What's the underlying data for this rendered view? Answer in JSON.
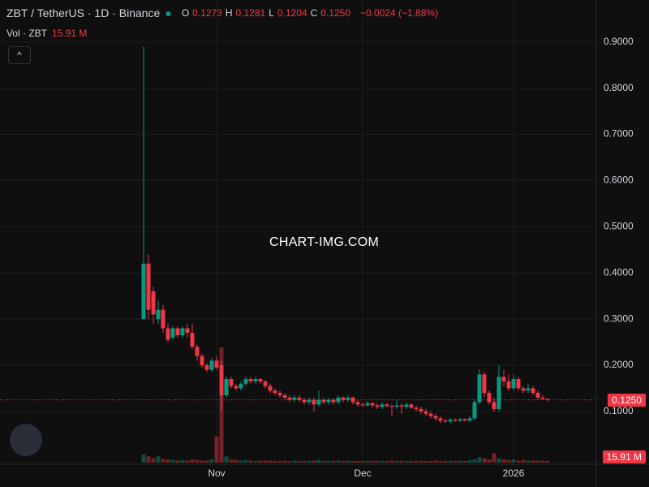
{
  "header": {
    "title": "ZBT / TetherUS · 1D · Binance",
    "ohlc": [
      {
        "key": "O",
        "value": "0.1273"
      },
      {
        "key": "H",
        "value": "0.1281"
      },
      {
        "key": "L",
        "value": "0.1204"
      },
      {
        "key": "C",
        "value": "0.1250"
      }
    ],
    "change": "−0.0024 (−1.88%)",
    "volume_label": "Vol · ZBT",
    "volume_value": "15.91 M"
  },
  "watermark": "CHART-IMG.COM",
  "chart_data": {
    "type": "candlestick",
    "categories": [
      null,
      null,
      null,
      null,
      null,
      null,
      null,
      null,
      null,
      null,
      null,
      null,
      null,
      null,
      null,
      "Nov",
      null,
      null,
      null,
      null,
      null,
      null,
      null,
      null,
      null,
      null,
      null,
      null,
      null,
      null,
      null,
      null,
      null,
      null,
      null,
      null,
      null,
      null,
      null,
      null,
      null,
      null,
      null,
      null,
      null,
      "Dec",
      null,
      null,
      null,
      null,
      null,
      null,
      null,
      null,
      null,
      null,
      null,
      null,
      null,
      null,
      null,
      null,
      null,
      null,
      null,
      null,
      null,
      null,
      null,
      null,
      null,
      null,
      null,
      null,
      null,
      null,
      "2026",
      null,
      null,
      null,
      null,
      null,
      null,
      null
    ],
    "open": [
      0.3,
      0.42,
      0.36,
      0.3,
      0.32,
      0.28,
      0.26,
      0.28,
      0.265,
      0.28,
      0.27,
      0.24,
      0.22,
      0.2,
      0.19,
      0.21,
      0.2,
      0.135,
      0.17,
      0.155,
      0.15,
      0.16,
      0.17,
      0.165,
      0.17,
      0.165,
      0.155,
      0.145,
      0.14,
      0.135,
      0.13,
      0.125,
      0.13,
      0.125,
      0.12,
      0.125,
      0.115,
      0.125,
      0.12,
      0.125,
      0.12,
      0.13,
      0.125,
      0.13,
      0.12,
      0.115,
      0.113,
      0.118,
      0.113,
      0.11,
      0.115,
      0.112,
      0.11,
      0.113,
      0.11,
      0.115,
      0.108,
      0.105,
      0.1,
      0.095,
      0.09,
      0.085,
      0.08,
      0.078,
      0.082,
      0.08,
      0.083,
      0.08,
      0.085,
      0.12,
      0.18,
      0.14,
      0.12,
      0.105,
      0.175,
      0.165,
      0.15,
      0.17,
      0.15,
      0.145,
      0.15,
      0.14,
      0.13,
      0.1273
    ],
    "high": [
      0.89,
      0.44,
      0.37,
      0.34,
      0.33,
      0.29,
      0.285,
      0.285,
      0.285,
      0.29,
      0.29,
      0.245,
      0.225,
      0.205,
      0.215,
      0.22,
      0.21,
      0.175,
      0.175,
      0.16,
      0.165,
      0.175,
      0.175,
      0.175,
      0.172,
      0.168,
      0.16,
      0.15,
      0.145,
      0.14,
      0.135,
      0.135,
      0.135,
      0.13,
      0.13,
      0.13,
      0.145,
      0.13,
      0.13,
      0.128,
      0.135,
      0.132,
      0.135,
      0.132,
      0.125,
      0.12,
      0.122,
      0.12,
      0.118,
      0.12,
      0.118,
      0.115,
      0.125,
      0.118,
      0.12,
      0.118,
      0.112,
      0.11,
      0.105,
      0.1,
      0.095,
      0.09,
      0.085,
      0.086,
      0.085,
      0.086,
      0.085,
      0.09,
      0.125,
      0.19,
      0.185,
      0.145,
      0.13,
      0.2,
      0.19,
      0.18,
      0.18,
      0.175,
      0.155,
      0.16,
      0.155,
      0.145,
      0.135,
      0.1281
    ],
    "low": [
      0.3,
      0.3,
      0.29,
      0.29,
      0.27,
      0.25,
      0.255,
      0.26,
      0.26,
      0.26,
      0.235,
      0.21,
      0.195,
      0.185,
      0.185,
      0.19,
      0.1,
      0.13,
      0.15,
      0.145,
      0.145,
      0.155,
      0.16,
      0.16,
      0.16,
      0.15,
      0.14,
      0.135,
      0.13,
      0.125,
      0.12,
      0.12,
      0.12,
      0.115,
      0.115,
      0.1,
      0.11,
      0.115,
      0.115,
      0.115,
      0.115,
      0.12,
      0.12,
      0.115,
      0.11,
      0.11,
      0.11,
      0.108,
      0.105,
      0.105,
      0.108,
      0.09,
      0.105,
      0.095,
      0.105,
      0.105,
      0.1,
      0.095,
      0.09,
      0.085,
      0.08,
      0.075,
      0.075,
      0.075,
      0.077,
      0.077,
      0.078,
      0.078,
      0.082,
      0.115,
      0.13,
      0.115,
      0.1,
      0.1,
      0.155,
      0.145,
      0.145,
      0.145,
      0.14,
      0.14,
      0.135,
      0.125,
      0.125,
      0.1204
    ],
    "close": [
      0.42,
      0.32,
      0.31,
      0.32,
      0.28,
      0.255,
      0.28,
      0.265,
      0.28,
      0.27,
      0.24,
      0.22,
      0.2,
      0.19,
      0.21,
      0.195,
      0.135,
      0.17,
      0.155,
      0.15,
      0.16,
      0.17,
      0.165,
      0.17,
      0.165,
      0.155,
      0.145,
      0.14,
      0.135,
      0.13,
      0.125,
      0.13,
      0.125,
      0.12,
      0.125,
      0.115,
      0.125,
      0.12,
      0.125,
      0.12,
      0.13,
      0.125,
      0.13,
      0.12,
      0.115,
      0.113,
      0.118,
      0.113,
      0.11,
      0.115,
      0.112,
      0.11,
      0.113,
      0.11,
      0.115,
      0.108,
      0.105,
      0.1,
      0.095,
      0.09,
      0.085,
      0.08,
      0.078,
      0.082,
      0.08,
      0.083,
      0.08,
      0.085,
      0.12,
      0.18,
      0.14,
      0.12,
      0.105,
      0.175,
      0.165,
      0.15,
      0.17,
      0.15,
      0.145,
      0.15,
      0.14,
      0.13,
      0.127,
      0.125
    ],
    "volume": [
      80,
      60,
      40,
      60,
      35,
      30,
      25,
      20,
      25,
      20,
      30,
      25,
      20,
      20,
      30,
      250,
      1100,
      60,
      30,
      25,
      20,
      25,
      20,
      15,
      20,
      18,
      20,
      15,
      15,
      18,
      15,
      20,
      15,
      15,
      18,
      20,
      25,
      15,
      18,
      15,
      20,
      15,
      18,
      15,
      15,
      15,
      18,
      15,
      15,
      18,
      15,
      20,
      15,
      18,
      15,
      15,
      15,
      18,
      15,
      15,
      20,
      15,
      15,
      18,
      15,
      18,
      15,
      25,
      30,
      50,
      40,
      30,
      90,
      40,
      30,
      25,
      30,
      20,
      25,
      20,
      20,
      18,
      18,
      15.91
    ],
    "up_color": "#089981",
    "down_color": "#f23645",
    "ylim": [
      -0.011,
      0.991
    ],
    "yticks": [
      {
        "value": 0.1,
        "label": "0.1000"
      },
      {
        "value": 0.2,
        "label": "0.2000"
      },
      {
        "value": 0.3,
        "label": "0.3000"
      },
      {
        "value": 0.4,
        "label": "0.4000"
      },
      {
        "value": 0.5,
        "label": "0.5000"
      },
      {
        "value": 0.6,
        "label": "0.6000"
      },
      {
        "value": 0.7,
        "label": "0.7000"
      },
      {
        "value": 0.8,
        "label": "0.8000"
      },
      {
        "value": 0.9,
        "label": "0.9000"
      }
    ],
    "last_price": {
      "value": 0.125,
      "label": "0.1250"
    },
    "grid": true
  }
}
